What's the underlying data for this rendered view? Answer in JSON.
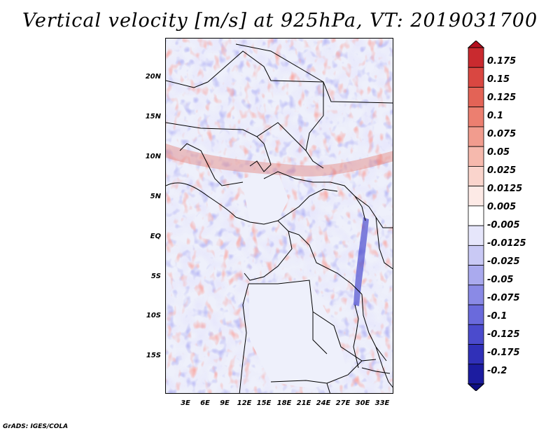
{
  "title": "Vertical velocity [m/s] at 925hPa, VT: 2019031700",
  "credit": "GrADS: IGES/COLA",
  "latitude_labels": [
    "20N",
    "15N",
    "10N",
    "5N",
    "EQ",
    "5S",
    "10S",
    "15S"
  ],
  "longitude_labels": [
    "3E",
    "6E",
    "9E",
    "12E",
    "15E",
    "18E",
    "21E",
    "24E",
    "27E",
    "30E",
    "33E"
  ],
  "map_extent": {
    "lon_min": 0.5,
    "lon_max": 35.0,
    "lat_min": -20.0,
    "lat_max": 24.5
  },
  "colorbar": {
    "labels": [
      "0.175",
      "0.15",
      "0.125",
      "0.1",
      "0.075",
      "0.05",
      "0.025",
      "0.0125",
      "0.005",
      "-0.005",
      "-0.0125",
      "-0.025",
      "-0.05",
      "-0.075",
      "-0.1",
      "-0.125",
      "-0.175",
      "-0.2"
    ],
    "colors": [
      "#b40f1e",
      "#c92a2f",
      "#d94741",
      "#e36356",
      "#ec7f70",
      "#f19c8e",
      "#f6b9ad",
      "#fad4cc",
      "#fdeae6",
      "#ffffff",
      "#e6e6fb",
      "#c9c9f5",
      "#aaaaee",
      "#8a8ae6",
      "#6a6adc",
      "#4b4bcd",
      "#3030b8",
      "#1c1ca0",
      "#0e0e84"
    ]
  }
}
